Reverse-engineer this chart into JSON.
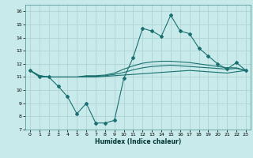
{
  "xlabel": "Humidex (Indice chaleur)",
  "background_color": "#c8eaea",
  "grid_color": "#b0d4d4",
  "line_color": "#1a7070",
  "xlim": [
    -0.5,
    23.5
  ],
  "ylim": [
    7,
    16.5
  ],
  "yticks": [
    7,
    8,
    9,
    10,
    11,
    12,
    13,
    14,
    15,
    16
  ],
  "xticks": [
    0,
    1,
    2,
    3,
    4,
    5,
    6,
    7,
    8,
    9,
    10,
    11,
    12,
    13,
    14,
    15,
    16,
    17,
    18,
    19,
    20,
    21,
    22,
    23
  ],
  "main_x": [
    0,
    1,
    2,
    3,
    4,
    5,
    6,
    7,
    8,
    9,
    10,
    11,
    12,
    13,
    14,
    15,
    16,
    17,
    18,
    19,
    20,
    21,
    22,
    23
  ],
  "main_y": [
    11.5,
    11.0,
    11.0,
    10.3,
    9.5,
    8.2,
    9.0,
    7.5,
    7.5,
    7.7,
    10.9,
    12.5,
    14.7,
    14.5,
    14.1,
    15.7,
    14.5,
    14.3,
    13.2,
    12.6,
    12.0,
    11.6,
    12.1,
    11.5
  ],
  "smooth1_x": [
    0,
    1,
    2,
    3,
    4,
    5,
    6,
    7,
    8,
    9,
    10,
    11,
    12,
    13,
    14,
    15,
    16,
    17,
    18,
    19,
    20,
    21,
    22,
    23
  ],
  "smooth1_y": [
    11.5,
    11.1,
    11.0,
    11.0,
    11.0,
    11.0,
    11.0,
    11.0,
    11.05,
    11.1,
    11.15,
    11.2,
    11.25,
    11.3,
    11.35,
    11.4,
    11.45,
    11.5,
    11.45,
    11.4,
    11.35,
    11.3,
    11.4,
    11.5
  ],
  "smooth2_x": [
    0,
    1,
    2,
    3,
    4,
    5,
    6,
    7,
    8,
    9,
    10,
    11,
    12,
    13,
    14,
    15,
    16,
    17,
    18,
    19,
    20,
    21,
    22,
    23
  ],
  "smooth2_y": [
    11.5,
    11.1,
    11.0,
    11.0,
    11.0,
    11.0,
    11.05,
    11.05,
    11.1,
    11.2,
    11.35,
    11.55,
    11.7,
    11.8,
    11.85,
    11.9,
    11.85,
    11.8,
    11.75,
    11.7,
    11.65,
    11.6,
    11.65,
    11.5
  ],
  "smooth3_x": [
    0,
    1,
    2,
    3,
    4,
    5,
    6,
    7,
    8,
    9,
    10,
    11,
    12,
    13,
    14,
    15,
    16,
    17,
    18,
    19,
    20,
    21,
    22,
    23
  ],
  "smooth3_y": [
    11.5,
    11.1,
    11.0,
    11.0,
    11.0,
    11.0,
    11.1,
    11.1,
    11.15,
    11.3,
    11.6,
    11.85,
    12.05,
    12.15,
    12.2,
    12.2,
    12.15,
    12.1,
    12.0,
    11.9,
    11.8,
    11.7,
    11.7,
    11.5
  ]
}
